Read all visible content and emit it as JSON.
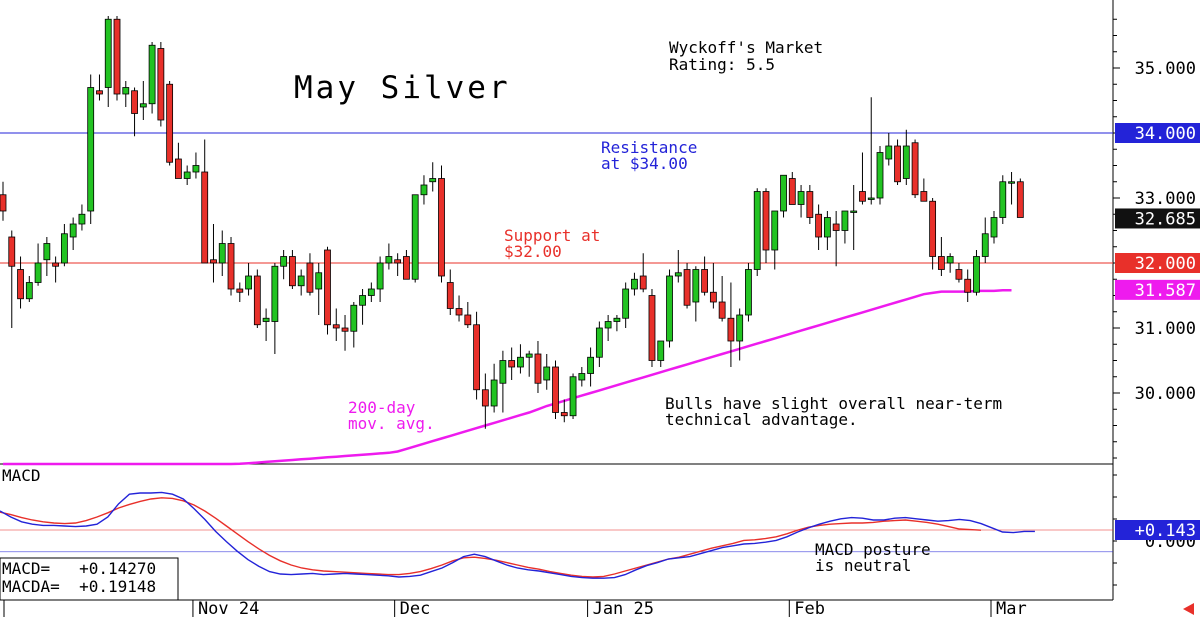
{
  "chart_data": {
    "type": "candlestick",
    "title": "May Silver",
    "rating_line1": "Wyckoff's Market",
    "rating_line2": "Rating: 5.5",
    "ylim": [
      29.0,
      36.0
    ],
    "y_ticks": [
      "35.000",
      "33.000",
      "31.000",
      "30.000"
    ],
    "y_tick_values": [
      35.0,
      33.0,
      31.0,
      30.0
    ],
    "x_labels": [
      "Nov 24",
      "Dec",
      "Jan 25",
      "Feb",
      "Mar"
    ],
    "x_label_index": [
      22,
      45,
      67,
      90,
      113
    ],
    "candles": [
      [
        33.05,
        33.25,
        32.65,
        32.8
      ],
      [
        32.4,
        32.5,
        31.0,
        31.95
      ],
      [
        31.9,
        32.1,
        31.3,
        31.45
      ],
      [
        31.45,
        31.8,
        31.4,
        31.7
      ],
      [
        31.7,
        32.3,
        31.65,
        32.0
      ],
      [
        32.05,
        32.4,
        31.8,
        32.3
      ],
      [
        32.0,
        32.1,
        31.7,
        31.95
      ],
      [
        32.0,
        32.6,
        31.95,
        32.45
      ],
      [
        32.4,
        32.7,
        32.2,
        32.6
      ],
      [
        32.6,
        32.9,
        32.5,
        32.75
      ],
      [
        32.8,
        34.9,
        32.6,
        34.7
      ],
      [
        34.65,
        34.9,
        34.5,
        34.6
      ],
      [
        34.7,
        35.8,
        34.4,
        35.75
      ],
      [
        35.75,
        35.8,
        34.5,
        34.6
      ],
      [
        34.6,
        34.8,
        34.4,
        34.7
      ],
      [
        34.65,
        34.7,
        33.95,
        34.3
      ],
      [
        34.4,
        34.8,
        34.2,
        34.45
      ],
      [
        34.45,
        35.4,
        34.3,
        35.35
      ],
      [
        35.3,
        35.4,
        34.1,
        34.2
      ],
      [
        34.75,
        34.8,
        33.5,
        33.55
      ],
      [
        33.6,
        33.85,
        33.3,
        33.3
      ],
      [
        33.3,
        33.5,
        33.2,
        33.4
      ],
      [
        33.4,
        33.7,
        33.3,
        33.5
      ],
      [
        33.4,
        33.9,
        32.0,
        32.0
      ],
      [
        32.05,
        32.6,
        31.7,
        32.0
      ],
      [
        32.0,
        32.5,
        31.8,
        32.3
      ],
      [
        32.3,
        32.4,
        31.5,
        31.6
      ],
      [
        31.6,
        31.7,
        31.4,
        31.55
      ],
      [
        31.6,
        32.0,
        31.5,
        31.8
      ],
      [
        31.8,
        31.9,
        31.0,
        31.05
      ],
      [
        31.1,
        31.3,
        30.8,
        31.15
      ],
      [
        31.1,
        32.0,
        30.6,
        31.95
      ],
      [
        31.95,
        32.2,
        31.75,
        32.1
      ],
      [
        32.1,
        32.2,
        31.6,
        31.65
      ],
      [
        31.65,
        31.9,
        31.5,
        31.8
      ],
      [
        32.0,
        32.15,
        31.5,
        31.55
      ],
      [
        31.6,
        32.0,
        31.2,
        31.85
      ],
      [
        32.2,
        32.25,
        30.9,
        31.05
      ],
      [
        31.05,
        31.3,
        30.8,
        31.0
      ],
      [
        31.0,
        31.2,
        30.65,
        30.95
      ],
      [
        30.95,
        31.4,
        30.7,
        31.35
      ],
      [
        31.35,
        31.6,
        31.05,
        31.5
      ],
      [
        31.5,
        31.7,
        31.4,
        31.6
      ],
      [
        31.6,
        32.1,
        31.4,
        32.0
      ],
      [
        32.0,
        32.3,
        31.9,
        32.1
      ],
      [
        32.05,
        32.15,
        31.8,
        32.0
      ],
      [
        32.1,
        32.2,
        31.75,
        31.75
      ],
      [
        31.75,
        33.05,
        31.7,
        33.05
      ],
      [
        33.05,
        33.35,
        32.9,
        33.2
      ],
      [
        33.25,
        33.55,
        33.1,
        33.3
      ],
      [
        33.3,
        33.5,
        31.7,
        31.8
      ],
      [
        31.7,
        31.9,
        31.2,
        31.3
      ],
      [
        31.3,
        31.5,
        31.1,
        31.2
      ],
      [
        31.2,
        31.4,
        31.0,
        31.05
      ],
      [
        31.05,
        31.25,
        29.9,
        30.05
      ],
      [
        30.05,
        30.3,
        29.45,
        29.8
      ],
      [
        29.8,
        30.45,
        29.7,
        30.2
      ],
      [
        30.15,
        30.65,
        29.7,
        30.5
      ],
      [
        30.5,
        30.7,
        30.2,
        30.4
      ],
      [
        30.4,
        30.75,
        30.3,
        30.55
      ],
      [
        30.55,
        30.65,
        30.25,
        30.6
      ],
      [
        30.6,
        30.8,
        30.0,
        30.15
      ],
      [
        30.2,
        30.6,
        30.05,
        30.4
      ],
      [
        30.4,
        30.5,
        29.6,
        29.7
      ],
      [
        29.7,
        29.9,
        29.55,
        29.65
      ],
      [
        29.65,
        30.3,
        29.6,
        30.25
      ],
      [
        30.2,
        30.4,
        30.1,
        30.3
      ],
      [
        30.3,
        30.7,
        30.1,
        30.55
      ],
      [
        30.55,
        31.1,
        30.4,
        31.0
      ],
      [
        31.0,
        31.2,
        30.8,
        31.1
      ],
      [
        31.1,
        31.2,
        30.95,
        31.15
      ],
      [
        31.15,
        31.7,
        31.0,
        31.6
      ],
      [
        31.6,
        31.85,
        31.5,
        31.75
      ],
      [
        31.8,
        32.15,
        31.55,
        31.6
      ],
      [
        31.5,
        31.6,
        30.4,
        30.5
      ],
      [
        30.5,
        30.8,
        30.4,
        30.8
      ],
      [
        30.8,
        31.9,
        30.7,
        31.8
      ],
      [
        31.8,
        32.2,
        31.7,
        31.85
      ],
      [
        31.9,
        32.0,
        31.3,
        31.35
      ],
      [
        31.4,
        31.95,
        31.1,
        31.9
      ],
      [
        31.9,
        32.1,
        31.5,
        31.55
      ],
      [
        31.55,
        32.0,
        31.3,
        31.4
      ],
      [
        31.4,
        31.8,
        31.1,
        31.15
      ],
      [
        31.15,
        31.7,
        30.4,
        30.8
      ],
      [
        30.8,
        31.3,
        30.5,
        31.2
      ],
      [
        31.2,
        32.0,
        31.1,
        31.9
      ],
      [
        31.9,
        33.15,
        31.8,
        33.1
      ],
      [
        33.1,
        33.15,
        32.0,
        32.2
      ],
      [
        32.2,
        32.8,
        31.9,
        32.8
      ],
      [
        32.8,
        33.35,
        32.7,
        33.35
      ],
      [
        33.3,
        33.4,
        32.9,
        32.9
      ],
      [
        32.9,
        33.2,
        32.7,
        33.1
      ],
      [
        33.1,
        33.2,
        32.6,
        32.7
      ],
      [
        32.75,
        32.9,
        32.2,
        32.4
      ],
      [
        32.4,
        32.8,
        32.2,
        32.7
      ],
      [
        32.6,
        32.8,
        31.95,
        32.5
      ],
      [
        32.5,
        32.8,
        32.3,
        32.8
      ],
      [
        32.8,
        33.2,
        32.2,
        32.8
      ],
      [
        33.1,
        33.7,
        32.9,
        32.95
      ],
      [
        33.0,
        34.55,
        32.9,
        33.0
      ],
      [
        33.0,
        33.8,
        32.9,
        33.7
      ],
      [
        33.6,
        34.0,
        33.5,
        33.8
      ],
      [
        33.8,
        33.9,
        33.2,
        33.25
      ],
      [
        33.3,
        34.05,
        33.2,
        33.8
      ],
      [
        33.85,
        33.9,
        33.0,
        33.05
      ],
      [
        33.1,
        33.3,
        32.95,
        32.95
      ],
      [
        32.95,
        33.0,
        31.9,
        32.1
      ],
      [
        32.1,
        32.4,
        31.8,
        31.9
      ],
      [
        32.0,
        32.15,
        31.85,
        32.1
      ],
      [
        31.9,
        32.0,
        31.7,
        31.75
      ],
      [
        31.75,
        31.9,
        31.4,
        31.55
      ],
      [
        31.55,
        32.2,
        31.5,
        32.1
      ],
      [
        32.1,
        32.7,
        32.0,
        32.45
      ],
      [
        32.4,
        32.8,
        32.3,
        32.7
      ],
      [
        32.7,
        33.35,
        32.6,
        33.25
      ],
      [
        33.25,
        33.4,
        32.9,
        33.25
      ],
      [
        33.25,
        33.3,
        32.7,
        32.7
      ]
    ],
    "ma_label_line1": "200-day",
    "ma_label_line2": "mov. avg.",
    "ma_values": [
      28.4,
      28.41,
      28.42,
      28.44,
      28.45,
      28.47,
      28.48,
      28.49,
      28.5,
      28.51,
      28.52,
      28.54,
      28.55,
      28.56,
      28.57,
      28.58,
      28.59,
      28.6,
      28.62,
      28.63,
      28.64,
      28.65,
      28.66,
      28.67,
      28.68,
      28.69,
      28.7,
      28.71,
      28.72,
      28.73,
      28.74,
      28.75,
      28.76,
      28.77,
      28.78,
      28.79,
      28.8,
      28.81,
      28.82,
      28.83,
      28.84,
      28.85,
      28.86,
      28.87,
      28.88,
      28.89,
      28.9,
      28.91,
      28.92,
      28.93,
      28.94,
      28.95,
      28.96,
      28.97,
      28.98,
      28.99,
      29.0,
      29.01,
      29.02,
      29.03,
      29.04,
      29.05,
      29.06,
      29.07,
      29.08,
      29.1,
      29.14,
      29.18,
      29.22,
      29.26,
      29.3,
      29.34,
      29.38,
      29.42,
      29.46,
      29.5,
      29.54,
      29.58,
      29.62,
      29.66,
      29.7,
      29.75,
      29.8,
      29.84,
      29.88,
      29.92,
      29.96,
      30.0,
      30.04,
      30.08,
      30.12,
      30.16,
      30.2,
      30.24,
      30.28,
      30.32,
      30.36,
      30.4,
      30.44,
      30.48,
      30.52,
      30.56,
      30.6,
      30.64,
      30.68,
      30.72,
      30.76,
      30.8,
      30.84,
      30.88,
      30.92,
      30.96,
      31.0,
      31.04,
      31.08,
      31.12,
      31.16,
      31.2,
      31.24,
      31.28,
      31.32,
      31.36,
      31.4,
      31.44,
      31.48,
      31.52,
      31.54,
      31.56,
      31.56,
      31.56,
      31.56,
      31.57,
      31.57,
      31.57,
      31.58,
      31.58
    ],
    "ma_start_index": -20,
    "resistance": 34.0,
    "support": 32.0,
    "resistance_label_line1": "Resistance",
    "resistance_label_line2": "at $34.00",
    "support_label_line1": "Support at",
    "support_label_line2": "$32.00",
    "note_line1": "Bulls have slight overall near-term",
    "note_line2": "technical advantage.",
    "price_tags": [
      {
        "text": "34.000",
        "value": 34.0,
        "bg": "#2323d8",
        "fg": "#ffffff"
      },
      {
        "text": "32.685",
        "value": 32.685,
        "bg": "#111111",
        "fg": "#ffffff"
      },
      {
        "text": "32.000",
        "value": 32.0,
        "bg": "#e8302a",
        "fg": "#ffffff"
      },
      {
        "text": "31.587",
        "value": 31.587,
        "bg": "#ee1bee",
        "fg": "#ffffff"
      }
    ],
    "macd": {
      "label": "MACD",
      "ylim": [
        -0.8,
        0.8
      ],
      "tick_text": "0.000",
      "zero_line": 0.143,
      "lower_ref": -0.22,
      "tag_text": "+0.143",
      "tag_value": 0.143,
      "tag_bg": "#2323d8",
      "readout_line1": "MACD=   +0.14270",
      "readout_line2": "MACDA=  +0.19148",
      "posture_line1": "MACD posture",
      "posture_line2": "is neutral",
      "macd_values": [
        0.46,
        0.36,
        0.28,
        0.24,
        0.22,
        0.22,
        0.21,
        0.2,
        0.21,
        0.24,
        0.36,
        0.58,
        0.74,
        0.76,
        0.76,
        0.77,
        0.74,
        0.66,
        0.5,
        0.32,
        0.12,
        -0.05,
        -0.21,
        -0.35,
        -0.46,
        -0.55,
        -0.59,
        -0.6,
        -0.59,
        -0.58,
        -0.6,
        -0.59,
        -0.58,
        -0.59,
        -0.6,
        -0.61,
        -0.62,
        -0.64,
        -0.63,
        -0.61,
        -0.55,
        -0.49,
        -0.4,
        -0.3,
        -0.26,
        -0.3,
        -0.37,
        -0.44,
        -0.49,
        -0.52,
        -0.54,
        -0.57,
        -0.6,
        -0.63,
        -0.65,
        -0.66,
        -0.66,
        -0.65,
        -0.6,
        -0.52,
        -0.45,
        -0.4,
        -0.34,
        -0.32,
        -0.3,
        -0.25,
        -0.2,
        -0.15,
        -0.12,
        -0.09,
        -0.08,
        -0.06,
        -0.03,
        0.03,
        0.11,
        0.18,
        0.24,
        0.29,
        0.33,
        0.35,
        0.34,
        0.31,
        0.31,
        0.34,
        0.35,
        0.33,
        0.31,
        0.29,
        0.3,
        0.32,
        0.3,
        0.25,
        0.18,
        0.11,
        0.1,
        0.12,
        0.12
      ],
      "signal_values": [
        0.44,
        0.4,
        0.35,
        0.31,
        0.28,
        0.26,
        0.25,
        0.26,
        0.3,
        0.36,
        0.43,
        0.51,
        0.57,
        0.62,
        0.66,
        0.68,
        0.67,
        0.63,
        0.56,
        0.46,
        0.34,
        0.21,
        0.08,
        -0.05,
        -0.17,
        -0.28,
        -0.37,
        -0.44,
        -0.49,
        -0.52,
        -0.54,
        -0.55,
        -0.56,
        -0.57,
        -0.58,
        -0.59,
        -0.6,
        -0.6,
        -0.58,
        -0.55,
        -0.5,
        -0.44,
        -0.37,
        -0.32,
        -0.31,
        -0.33,
        -0.36,
        -0.4,
        -0.44,
        -0.48,
        -0.51,
        -0.55,
        -0.58,
        -0.61,
        -0.63,
        -0.64,
        -0.63,
        -0.59,
        -0.54,
        -0.49,
        -0.44,
        -0.39,
        -0.34,
        -0.31,
        -0.26,
        -0.21,
        -0.16,
        -0.12,
        -0.08,
        -0.03,
        -0.02,
        0.0,
        0.03,
        0.08,
        0.14,
        0.19,
        0.22,
        0.24,
        0.25,
        0.26,
        0.26,
        0.27,
        0.29,
        0.3,
        0.31,
        0.29,
        0.27,
        0.24,
        0.2,
        0.16,
        0.15,
        0.14
      ]
    }
  }
}
